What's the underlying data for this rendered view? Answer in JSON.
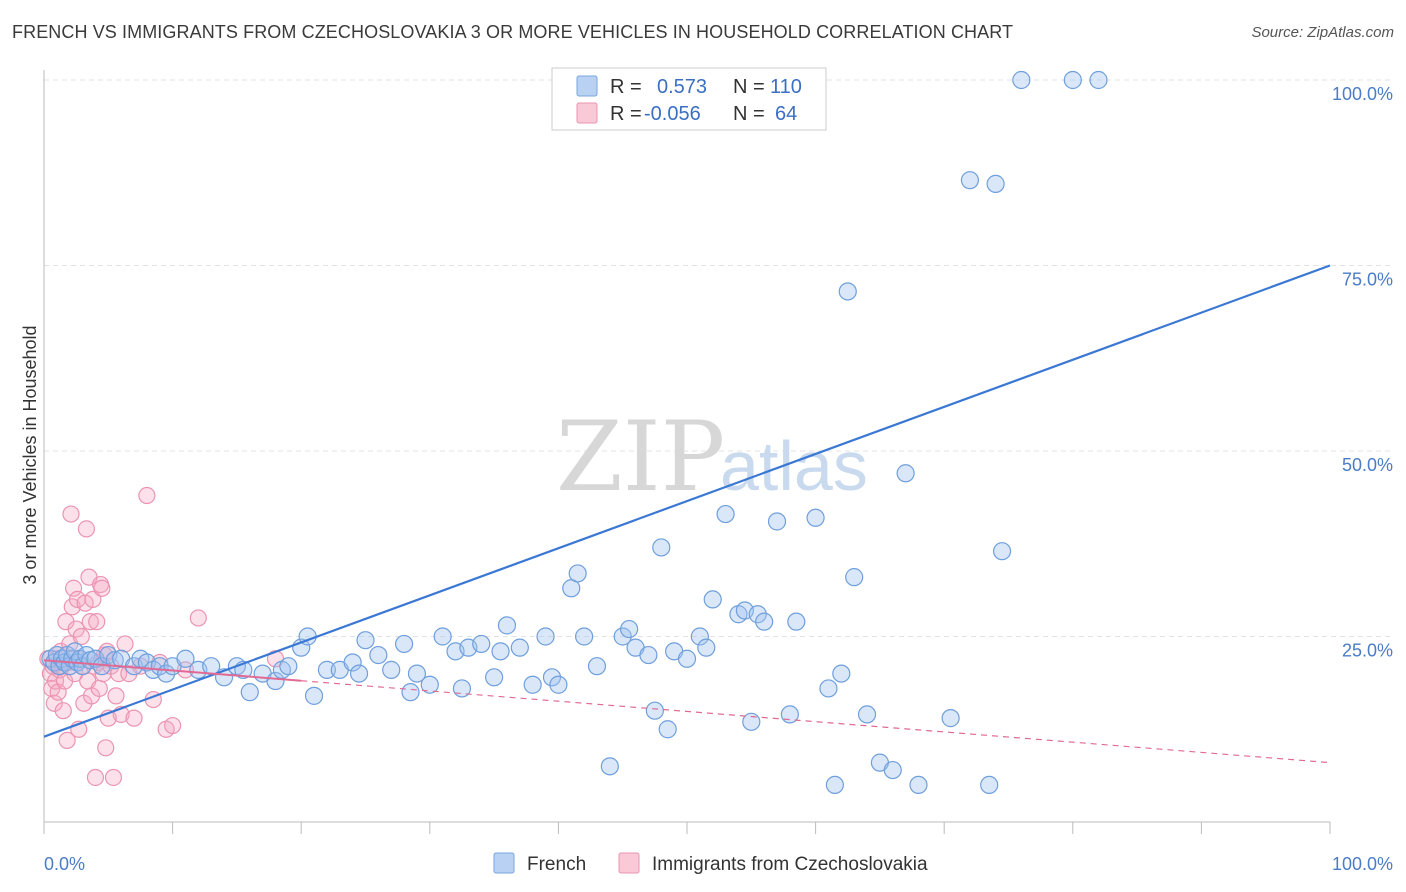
{
  "header": {
    "title": "FRENCH VS IMMIGRANTS FROM CZECHOSLOVAKIA 3 OR MORE VEHICLES IN HOUSEHOLD CORRELATION CHART",
    "source": "Source: ZipAtlas.com"
  },
  "watermark": {
    "zip": "ZIP",
    "atlas": "atlas"
  },
  "legend": {
    "rows": [
      {
        "r_label": "R =",
        "r_value": "0.573",
        "n_label": "N =",
        "n_value": "110",
        "color": "#a9c8f0"
      },
      {
        "r_label": "R =",
        "r_value": "-0.056",
        "n_label": "N =",
        "n_value": "64",
        "color": "#f5b8cb"
      }
    ]
  },
  "bottom_legend": [
    {
      "label": "French",
      "color": "#a9c8f0"
    },
    {
      "label": "Immigrants from Czechoslovakia",
      "color": "#f5b8cb"
    }
  ],
  "chart_data": {
    "type": "scatter",
    "title": "FRENCH VS IMMIGRANTS FROM CZECHOSLOVAKIA 3 OR MORE VEHICLES IN HOUSEHOLD CORRELATION CHART",
    "ylabel": "3 or more Vehicles in Household",
    "xlabel": "",
    "xlim": [
      0,
      100
    ],
    "ylim": [
      0,
      100
    ],
    "x_tick_labels": [
      "0.0%",
      "100.0%"
    ],
    "y_ticks": [
      25,
      50,
      75,
      100
    ],
    "y_tick_labels": [
      "25.0%",
      "50.0%",
      "75.0%",
      "100.0%"
    ],
    "grid": true,
    "colors": {
      "french": "#3a78d4",
      "czech": "#e06a94"
    },
    "series": [
      {
        "name": "French",
        "trend": {
          "x": [
            0,
            100
          ],
          "y": [
            11.5,
            75
          ]
        },
        "points": [
          [
            0.5,
            22
          ],
          [
            0.8,
            21.5
          ],
          [
            1.0,
            22.5
          ],
          [
            1.2,
            21
          ],
          [
            1.4,
            22
          ],
          [
            1.6,
            21.5
          ],
          [
            1.8,
            22.5
          ],
          [
            2.0,
            21
          ],
          [
            2.2,
            22
          ],
          [
            2.4,
            23
          ],
          [
            2.6,
            21.5
          ],
          [
            2.8,
            22
          ],
          [
            3.0,
            21
          ],
          [
            3.3,
            22.5
          ],
          [
            3.6,
            21.8
          ],
          [
            4.0,
            22
          ],
          [
            4.5,
            21
          ],
          [
            5.0,
            22.5
          ],
          [
            5.5,
            21.8
          ],
          [
            6.0,
            22
          ],
          [
            7.0,
            21
          ],
          [
            7.5,
            22
          ],
          [
            8.0,
            21.5
          ],
          [
            8.5,
            20.5
          ],
          [
            9.0,
            21
          ],
          [
            9.5,
            20
          ],
          [
            10.0,
            21
          ],
          [
            11.0,
            22
          ],
          [
            12.0,
            20.5
          ],
          [
            13.0,
            21
          ],
          [
            14.0,
            19.5
          ],
          [
            15.0,
            21
          ],
          [
            15.5,
            20.5
          ],
          [
            16.0,
            17.5
          ],
          [
            17.0,
            20
          ],
          [
            18.0,
            19
          ],
          [
            18.5,
            20.5
          ],
          [
            19.0,
            21
          ],
          [
            20.0,
            23.5
          ],
          [
            20.5,
            25
          ],
          [
            21.0,
            17
          ],
          [
            22.0,
            20.5
          ],
          [
            23.0,
            20.5
          ],
          [
            24.0,
            21.5
          ],
          [
            24.5,
            20
          ],
          [
            25.0,
            24.5
          ],
          [
            26.0,
            22.5
          ],
          [
            27.0,
            20.5
          ],
          [
            28.0,
            24
          ],
          [
            28.5,
            17.5
          ],
          [
            29.0,
            20
          ],
          [
            30.0,
            18.5
          ],
          [
            31.0,
            25
          ],
          [
            32.0,
            23
          ],
          [
            32.5,
            18
          ],
          [
            33.0,
            23.5
          ],
          [
            34.0,
            24
          ],
          [
            35.0,
            19.5
          ],
          [
            35.5,
            23
          ],
          [
            36.0,
            26.5
          ],
          [
            37.0,
            23.5
          ],
          [
            38.0,
            18.5
          ],
          [
            39.0,
            25
          ],
          [
            39.5,
            19.5
          ],
          [
            40.0,
            18.5
          ],
          [
            41.0,
            31.5
          ],
          [
            41.5,
            33.5
          ],
          [
            42.0,
            25
          ],
          [
            43.0,
            21
          ],
          [
            44.0,
            7.5
          ],
          [
            45.0,
            25
          ],
          [
            45.5,
            26
          ],
          [
            46.0,
            23.5
          ],
          [
            47.0,
            22.5
          ],
          [
            47.5,
            15
          ],
          [
            48.0,
            37
          ],
          [
            48.5,
            12.5
          ],
          [
            49.0,
            23
          ],
          [
            50.0,
            22
          ],
          [
            51.0,
            25
          ],
          [
            51.5,
            23.5
          ],
          [
            52.0,
            30
          ],
          [
            53.0,
            41.5
          ],
          [
            54.0,
            28
          ],
          [
            54.5,
            28.5
          ],
          [
            55.0,
            13.5
          ],
          [
            55.5,
            28
          ],
          [
            56.0,
            27
          ],
          [
            57.0,
            40.5
          ],
          [
            58.0,
            14.5
          ],
          [
            58.5,
            27
          ],
          [
            60.0,
            41
          ],
          [
            61.0,
            18
          ],
          [
            62.0,
            20
          ],
          [
            63.0,
            33
          ],
          [
            64.0,
            14.5
          ],
          [
            65.0,
            8
          ],
          [
            66.0,
            7
          ],
          [
            67.0,
            47
          ],
          [
            68.0,
            5
          ],
          [
            70.5,
            14
          ],
          [
            72.0,
            86.5
          ],
          [
            74.0,
            86
          ],
          [
            76.0,
            100
          ],
          [
            80.0,
            100
          ],
          [
            82.0,
            100
          ],
          [
            74.5,
            36.5
          ],
          [
            73.5,
            5
          ],
          [
            61.5,
            5
          ],
          [
            62.5,
            71.5
          ]
        ]
      },
      {
        "name": "Immigrants from Czechoslovakia",
        "trend": {
          "x": [
            0,
            100
          ],
          "y": [
            21.8,
            8
          ]
        },
        "points": [
          [
            0.3,
            22
          ],
          [
            0.5,
            20
          ],
          [
            0.6,
            18
          ],
          [
            0.7,
            21
          ],
          [
            0.8,
            16
          ],
          [
            0.9,
            19
          ],
          [
            1.0,
            22
          ],
          [
            1.1,
            17.5
          ],
          [
            1.2,
            20.5
          ],
          [
            1.3,
            23
          ],
          [
            1.4,
            21
          ],
          [
            1.5,
            15
          ],
          [
            1.6,
            19
          ],
          [
            1.7,
            27
          ],
          [
            1.8,
            11
          ],
          [
            1.9,
            21.5
          ],
          [
            2.0,
            24
          ],
          [
            2.1,
            41.5
          ],
          [
            2.2,
            29
          ],
          [
            2.3,
            31.5
          ],
          [
            2.4,
            20
          ],
          [
            2.5,
            26
          ],
          [
            2.6,
            30
          ],
          [
            2.7,
            12.5
          ],
          [
            2.8,
            22
          ],
          [
            2.9,
            25
          ],
          [
            3.0,
            21
          ],
          [
            3.1,
            16
          ],
          [
            3.2,
            29.5
          ],
          [
            3.3,
            39.5
          ],
          [
            3.4,
            19
          ],
          [
            3.5,
            33
          ],
          [
            3.6,
            27
          ],
          [
            3.7,
            17
          ],
          [
            3.8,
            30
          ],
          [
            3.9,
            21
          ],
          [
            4.0,
            6
          ],
          [
            4.1,
            27
          ],
          [
            4.2,
            21.5
          ],
          [
            4.3,
            18
          ],
          [
            4.4,
            32
          ],
          [
            4.5,
            31.5
          ],
          [
            4.6,
            20
          ],
          [
            4.7,
            22.5
          ],
          [
            4.8,
            10
          ],
          [
            4.9,
            23
          ],
          [
            5.0,
            14
          ],
          [
            5.2,
            21
          ],
          [
            5.4,
            6
          ],
          [
            5.6,
            17
          ],
          [
            5.8,
            20
          ],
          [
            6.0,
            14.5
          ],
          [
            6.3,
            24
          ],
          [
            6.6,
            20
          ],
          [
            7.0,
            14
          ],
          [
            7.5,
            21
          ],
          [
            8.0,
            44
          ],
          [
            8.5,
            16.5
          ],
          [
            9.0,
            21.5
          ],
          [
            9.5,
            12.5
          ],
          [
            10.0,
            13
          ],
          [
            11.0,
            20.5
          ],
          [
            12.0,
            27.5
          ],
          [
            18.0,
            22
          ]
        ]
      }
    ]
  }
}
